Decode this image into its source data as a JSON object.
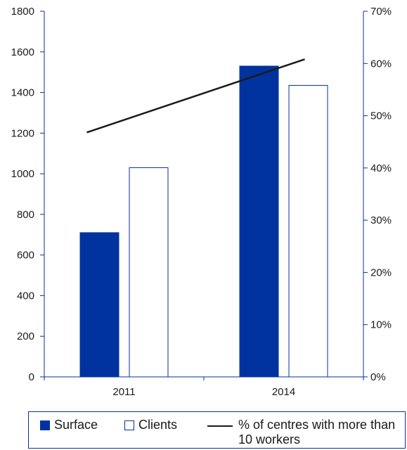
{
  "chart_data": {
    "type": "bar",
    "categories": [
      "2011",
      "2014"
    ],
    "series": [
      {
        "name": "Surface",
        "type": "bar",
        "axis": "left",
        "values": [
          710,
          1530
        ],
        "color": "#0033a0",
        "filled": true
      },
      {
        "name": "Clients",
        "type": "bar",
        "axis": "left",
        "values": [
          1030,
          1435
        ],
        "color": "#0033a0",
        "filled": false
      },
      {
        "name": "% of centres with more than 10 workers",
        "type": "line",
        "axis": "right",
        "values": [
          46.8,
          60.8
        ],
        "color": "#1a1a1a"
      }
    ],
    "y_left": {
      "min": 0,
      "max": 1800,
      "ticks": [
        "0",
        "200",
        "400",
        "600",
        "800",
        "1000",
        "1200",
        "1400",
        "1600",
        "1800"
      ]
    },
    "y_right": {
      "min": 0,
      "max": 70,
      "ticks": [
        "0%",
        "10%",
        "20%",
        "30%",
        "40%",
        "50%",
        "60%",
        "70%"
      ]
    },
    "title": "",
    "xlabel": "",
    "ylabel": "",
    "grid": false,
    "legend_position": "bottom"
  },
  "legend": {
    "surface_label": "Surface",
    "clients_label": "Clients",
    "line_label": "% of centres with more than 10 workers"
  }
}
